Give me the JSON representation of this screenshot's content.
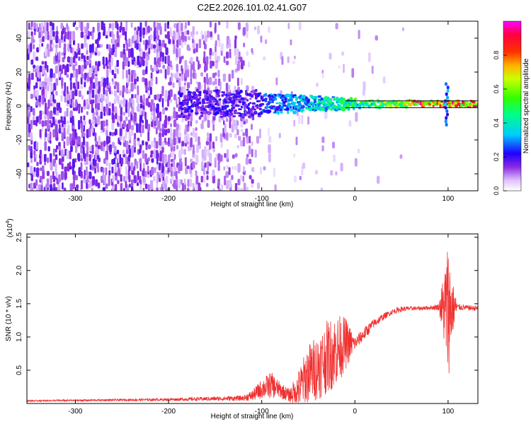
{
  "figure_title": "C2E2.2026.101.02.41.G07",
  "chart_data": [
    {
      "type": "heatmap",
      "title": "C2E2.2026.101.02.41.G07",
      "xlabel": "Height of straight line (km)",
      "ylabel": "Frequency (Hz)",
      "xlim": [
        -352,
        132
      ],
      "ylim": [
        -50,
        50
      ],
      "xticks": [
        -300,
        -200,
        -100,
        0,
        100
      ],
      "xtick_labels": [
        "-300",
        "-200",
        "-100",
        "0",
        "100"
      ],
      "yticks": [
        -40,
        -20,
        0,
        20,
        40
      ],
      "ytick_labels": [
        "-40",
        "-20",
        "0",
        "20",
        "40"
      ],
      "colorbar": {
        "label": "Normalized spectral amplitude",
        "range": [
          0,
          1
        ],
        "ticks": [
          0.0,
          0.2,
          0.4,
          0.6,
          0.8
        ],
        "tick_labels": [
          "0.0",
          "0.2",
          "0.4",
          "0.6",
          "0.8"
        ],
        "colors": [
          "#ffffff",
          "#d9b3ff",
          "#8a2be2",
          "#0000ff",
          "#00ffff",
          "#00ff00",
          "#ffff00",
          "#ff8000",
          "#ff0000",
          "#ff00ff"
        ]
      },
      "signal_band": {
        "description": "strong narrow band near 0 Hz",
        "start_km": -190,
        "center_hz": 1,
        "peak_region_km": [
          60,
          130
        ],
        "spike_km": 97
      }
    },
    {
      "type": "line",
      "xlabel": "Height of straight line (km)",
      "ylabel": "SNR (10 * v/v)",
      "scale_label": "(x10",
      "scale_exp": "4",
      "scale_close": ")",
      "xlim": [
        -352,
        132
      ],
      "ylim": [
        0,
        2.55
      ],
      "xticks": [
        -300,
        -200,
        -100,
        0,
        100
      ],
      "xtick_labels": [
        "-300",
        "-200",
        "-100",
        "0",
        "100"
      ],
      "yticks": [
        0.5,
        1.0,
        1.5,
        2.0,
        2.5
      ],
      "ytick_labels": [
        "0.5",
        "1.0",
        "1.5",
        "2.0",
        "2.5"
      ],
      "color": "#f03030",
      "profile_x": [
        -352,
        -200,
        -120,
        -110,
        -100,
        -90,
        -80,
        -70,
        -60,
        -50,
        -40,
        -30,
        -20,
        -10,
        0,
        10,
        20,
        30,
        40,
        50,
        60,
        70,
        80,
        90,
        95,
        100,
        105,
        110,
        120,
        132
      ],
      "profile_y": [
        0.04,
        0.06,
        0.08,
        0.12,
        0.22,
        0.28,
        0.2,
        0.12,
        0.22,
        0.45,
        0.55,
        0.7,
        0.8,
        0.9,
        0.9,
        1.05,
        1.2,
        1.3,
        1.38,
        1.42,
        1.43,
        1.43,
        1.44,
        1.45,
        1.45,
        1.4,
        1.44,
        1.45,
        1.44,
        1.43
      ],
      "noise_amp": [
        0.01,
        0.02,
        0.04,
        0.08,
        0.15,
        0.2,
        0.12,
        0.1,
        0.3,
        0.45,
        0.5,
        0.55,
        0.55,
        0.4,
        0.1,
        0.1,
        0.07,
        0.05,
        0.04,
        0.04,
        0.03,
        0.03,
        0.03,
        0.05,
        0.5,
        1.1,
        0.4,
        0.05,
        0.04,
        0.04
      ]
    }
  ]
}
